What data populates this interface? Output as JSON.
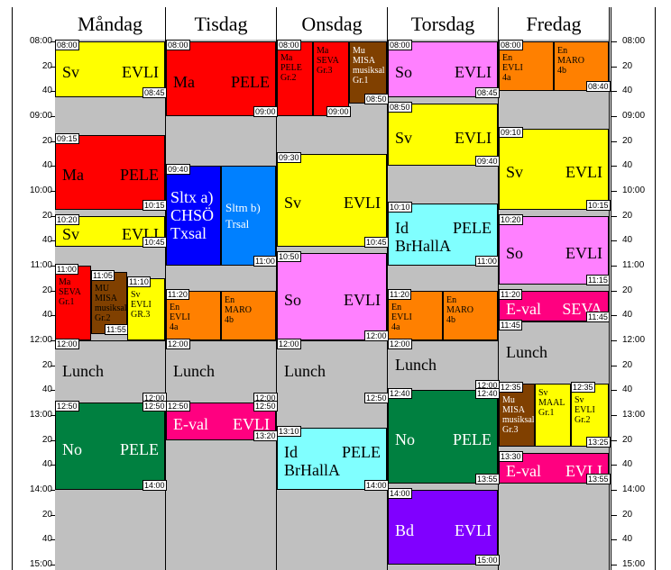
{
  "days": [
    "Måndag",
    "Tisdag",
    "Onsdag",
    "Torsdag",
    "Fredag"
  ],
  "hour_labels": [
    "08:00",
    "20",
    "40",
    "09:00",
    "20",
    "40",
    "10:00",
    "20",
    "40",
    "11:00",
    "20",
    "40",
    "12:00",
    "20",
    "40",
    "13:00",
    "20",
    "40",
    "14:00",
    "20",
    "40",
    "15:00"
  ],
  "colors": {
    "yellow": "#ffff00",
    "red": "#ff0000",
    "brown": "#804000",
    "magenta": "#ff80ff",
    "orange": "#ff8000",
    "blue": "#0000ff",
    "lightblue": "#0080ff",
    "cyan": "#80ffff",
    "green": "#008040",
    "purple": "#8000ff",
    "pink": "#ff0080",
    "white": "#ffffff",
    "gray": "#c0c0c0"
  },
  "lessons": [
    {
      "day": 0,
      "start": "08:00",
      "end": "08:45",
      "color": "yellow",
      "subject": "Sv",
      "teacher": "EVLI",
      "room": "",
      "small": false,
      "startLabel": "08:00",
      "endLabel": "08:45"
    },
    {
      "day": 0,
      "start": "09:15",
      "end": "10:15",
      "color": "red",
      "subject": "Ma",
      "teacher": "PELE",
      "room": "",
      "small": false,
      "startLabel": "09:15",
      "endLabel": "10:15"
    },
    {
      "day": 0,
      "start": "10:20",
      "end": "10:45",
      "color": "yellow",
      "subject": "Sv",
      "teacher": "EVLI",
      "room": "",
      "small": false,
      "startLabel": "10:20",
      "endLabel": "10:45"
    },
    {
      "day": 0,
      "start": "11:00",
      "end": "12:00",
      "color": "red",
      "subject": "Ma",
      "teacher": "SEVA",
      "room": "Gr.1",
      "small": true,
      "col": 0,
      "cols": 3,
      "startLabel": "11:00",
      "endLabel": ""
    },
    {
      "day": 0,
      "start": "11:05",
      "end": "11:55",
      "color": "brown",
      "subject": "MU",
      "teacher": "MISA musiksal",
      "room": "Gr.2",
      "small": true,
      "col": 1,
      "cols": 3,
      "startLabel": "11:05",
      "endLabel": "11:55"
    },
    {
      "day": 0,
      "start": "11:10",
      "end": "12:00",
      "color": "yellow",
      "subject": "Sv",
      "teacher": "EVLI",
      "room": "GR.3",
      "small": true,
      "col": 2,
      "cols": 3,
      "startLabel": "11:10",
      "endLabel": ""
    },
    {
      "day": 0,
      "start": "12:00",
      "end": "12:50",
      "color": "gray",
      "subject": "Lunch",
      "teacher": "",
      "room": "",
      "small": false,
      "startLabel": "12:00",
      "endLabel": "12:00",
      "nob": true
    },
    {
      "day": 0,
      "start": "12:50",
      "end": "14:00",
      "color": "green",
      "subject": "No",
      "teacher": "PELE",
      "room": "",
      "small": false,
      "light": true,
      "startLabel": "12:50",
      "endLabel": "12:50",
      "endLabel2": "14:00"
    },
    {
      "day": 1,
      "start": "08:00",
      "end": "09:00",
      "color": "red",
      "subject": "Ma",
      "teacher": "PELE",
      "room": "",
      "small": false,
      "startLabel": "08:00",
      "endLabel": "09:00"
    },
    {
      "day": 1,
      "start": "09:40",
      "end": "11:00",
      "color": "blue",
      "subject": "Sltx a)",
      "teacher": "CHSÖ",
      "room": "Txsal",
      "small": false,
      "light": true,
      "col": 0,
      "cols": 2,
      "startLabel": "09:40",
      "endLabel": ""
    },
    {
      "day": 1,
      "start": "09:40",
      "end": "11:00",
      "color": "lightblue",
      "subject": "Sltm b)",
      "teacher": "",
      "room": "Trsal",
      "small": false,
      "light": true,
      "mid": true,
      "col": 1,
      "cols": 2,
      "startLabel": "",
      "endLabel": "11:00"
    },
    {
      "day": 1,
      "start": "11:20",
      "end": "12:00",
      "color": "orange",
      "subject": "En",
      "teacher": "EVLI",
      "room": "4a",
      "small": true,
      "col": 0,
      "cols": 2,
      "startLabel": "11:20",
      "endLabel": ""
    },
    {
      "day": 1,
      "start": "11:20",
      "end": "12:00",
      "color": "orange",
      "subject": "En",
      "teacher": "MARO",
      "room": "4b",
      "small": true,
      "col": 1,
      "cols": 2,
      "startLabel": "",
      "endLabel": ""
    },
    {
      "day": 1,
      "start": "12:00",
      "end": "12:50",
      "color": "gray",
      "subject": "Lunch",
      "teacher": "",
      "room": "",
      "small": false,
      "startLabel": "12:00",
      "endLabel": "12:00",
      "nob": true
    },
    {
      "day": 1,
      "start": "12:50",
      "end": "13:20",
      "color": "pink",
      "subject": "E-val",
      "teacher": "EVLI",
      "room": "",
      "small": false,
      "light": true,
      "startLabel": "12:50",
      "endLabel": "12:50",
      "endLabel2": "13:20"
    },
    {
      "day": 2,
      "start": "08:00",
      "end": "09:00",
      "color": "red",
      "subject": "Ma",
      "teacher": "PELE",
      "room": "Gr.2",
      "small": true,
      "col": 0,
      "cols": 3,
      "startLabel": "08:00",
      "endLabel": ""
    },
    {
      "day": 2,
      "start": "08:00",
      "end": "09:00",
      "color": "red",
      "subject": "Ma",
      "teacher": "SEVA",
      "room": "Gr.3",
      "small": true,
      "col": 1,
      "cols": 3,
      "startLabel": "",
      "endLabel": "09:00"
    },
    {
      "day": 2,
      "start": "08:00",
      "end": "08:50",
      "color": "brown",
      "subject": "Mu",
      "teacher": "MISA musiksal",
      "room": "Gr.1",
      "small": true,
      "light": true,
      "col": 2,
      "cols": 3,
      "startLabel": "",
      "endLabel": "08:50"
    },
    {
      "day": 2,
      "start": "09:30",
      "end": "10:45",
      "color": "yellow",
      "subject": "Sv",
      "teacher": "EVLI",
      "room": "",
      "small": false,
      "startLabel": "09:30",
      "endLabel": "10:45"
    },
    {
      "day": 2,
      "start": "10:50",
      "end": "12:00",
      "color": "magenta",
      "subject": "So",
      "teacher": "EVLI",
      "room": "",
      "small": false,
      "startLabel": "10:50",
      "endLabel": "12:00"
    },
    {
      "day": 2,
      "start": "12:00",
      "end": "12:50",
      "color": "gray",
      "subject": "Lunch",
      "teacher": "",
      "room": "",
      "small": false,
      "startLabel": "12:00",
      "endLabel": "12:50",
      "nob": true
    },
    {
      "day": 2,
      "start": "13:10",
      "end": "14:00",
      "color": "cyan",
      "subject": "Id",
      "teacher": "PELE",
      "room": "BrHallA",
      "small": false,
      "startLabel": "13:10",
      "endLabel": "14:00"
    },
    {
      "day": 3,
      "start": "08:00",
      "end": "08:45",
      "color": "magenta",
      "subject": "So",
      "teacher": "EVLI",
      "room": "",
      "small": false,
      "startLabel": "08:00",
      "endLabel": "08:45"
    },
    {
      "day": 3,
      "start": "08:50",
      "end": "09:40",
      "color": "yellow",
      "subject": "Sv",
      "teacher": "EVLI",
      "room": "",
      "small": false,
      "startLabel": "08:50",
      "endLabel": "09:40"
    },
    {
      "day": 3,
      "start": "10:10",
      "end": "11:00",
      "color": "cyan",
      "subject": "Id",
      "teacher": "PELE",
      "room": "BrHallA",
      "small": false,
      "startLabel": "10:10",
      "endLabel": "11:00"
    },
    {
      "day": 3,
      "start": "11:20",
      "end": "12:00",
      "color": "orange",
      "subject": "En",
      "teacher": "EVLI",
      "room": "4a",
      "small": true,
      "col": 0,
      "cols": 2,
      "startLabel": "11:20",
      "endLabel": ""
    },
    {
      "day": 3,
      "start": "11:20",
      "end": "12:00",
      "color": "orange",
      "subject": "En",
      "teacher": "MARO",
      "room": "4b",
      "small": true,
      "col": 1,
      "cols": 2,
      "startLabel": "",
      "endLabel": ""
    },
    {
      "day": 3,
      "start": "12:00",
      "end": "12:40",
      "color": "gray",
      "subject": "Lunch",
      "teacher": "",
      "room": "",
      "small": false,
      "startLabel": "12:00",
      "endLabel": "12:00",
      "nob": true
    },
    {
      "day": 3,
      "start": "12:40",
      "end": "13:55",
      "color": "green",
      "subject": "No",
      "teacher": "PELE",
      "room": "",
      "small": false,
      "light": true,
      "startLabel": "12:40",
      "endLabel": "12:40",
      "endLabel2": "13:55"
    },
    {
      "day": 3,
      "start": "14:00",
      "end": "15:00",
      "color": "purple",
      "subject": "Bd",
      "teacher": "EVLI",
      "room": "",
      "small": false,
      "light": true,
      "startLabel": "14:00",
      "endLabel": "15:00"
    },
    {
      "day": 4,
      "start": "08:00",
      "end": "08:40",
      "color": "orange",
      "subject": "En",
      "teacher": "EVLI",
      "room": "4a",
      "small": true,
      "col": 0,
      "cols": 2,
      "startLabel": "08:00",
      "endLabel": ""
    },
    {
      "day": 4,
      "start": "08:00",
      "end": "08:40",
      "color": "orange",
      "subject": "En",
      "teacher": "MARO",
      "room": "4b",
      "small": true,
      "col": 1,
      "cols": 2,
      "startLabel": "",
      "endLabel": "08:40"
    },
    {
      "day": 4,
      "start": "09:10",
      "end": "10:15",
      "color": "yellow",
      "subject": "Sv",
      "teacher": "EVLI",
      "room": "",
      "small": false,
      "startLabel": "09:10",
      "endLabel": "10:15"
    },
    {
      "day": 4,
      "start": "10:20",
      "end": "11:15",
      "color": "magenta",
      "subject": "So",
      "teacher": "EVLI",
      "room": "",
      "small": false,
      "startLabel": "10:20",
      "endLabel": "11:15"
    },
    {
      "day": 4,
      "start": "11:20",
      "end": "11:45",
      "color": "pink",
      "subject": "E-val",
      "teacher": "SEVA",
      "room": "",
      "small": false,
      "light": true,
      "startLabel": "11:20",
      "endLabel": "11:45",
      "endLabelLeft": "11:45"
    },
    {
      "day": 4,
      "start": "11:45",
      "end": "12:35",
      "color": "gray",
      "subject": "Lunch",
      "teacher": "",
      "room": "",
      "small": false,
      "nob": true,
      "startLabel": "",
      "endLabel": ""
    },
    {
      "day": 4,
      "start": "12:35",
      "end": "13:25",
      "color": "brown",
      "subject": "Mu",
      "teacher": "MISA musiksal",
      "room": "Gr.3",
      "small": true,
      "light": true,
      "col": 0,
      "cols": 3,
      "startLabel": "12:35",
      "endLabel": ""
    },
    {
      "day": 4,
      "start": "12:35",
      "end": "13:25",
      "color": "yellow",
      "subject": "Sv",
      "teacher": "MAAL",
      "room": "Gr.1",
      "small": true,
      "col": 1,
      "cols": 3,
      "startLabel": "",
      "endLabel": ""
    },
    {
      "day": 4,
      "start": "12:35",
      "end": "13:25",
      "color": "yellow",
      "subject": "Sv",
      "teacher": "EVLI",
      "room": "Gr.2",
      "small": true,
      "col": 2,
      "cols": 3,
      "startLabel": "12:35",
      "endLabel": "13:25"
    },
    {
      "day": 4,
      "start": "13:30",
      "end": "13:55",
      "color": "pink",
      "subject": "E-val",
      "teacher": "EVLI",
      "room": "",
      "small": false,
      "light": true,
      "startLabel": "13:30",
      "endLabel": "13:55"
    }
  ]
}
